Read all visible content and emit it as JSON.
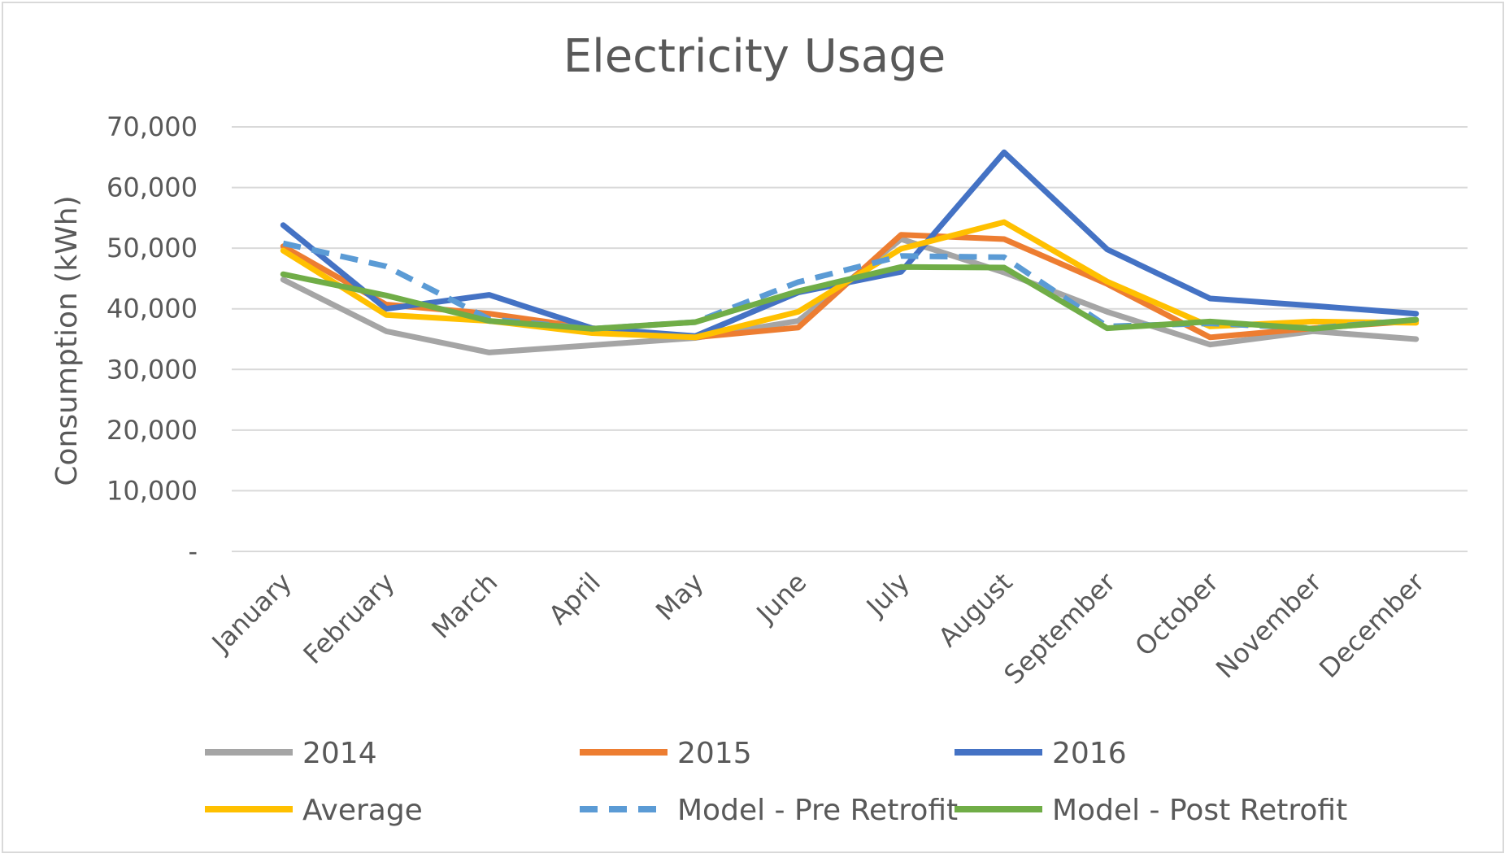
{
  "chart_data": {
    "type": "line",
    "title": "Electricity Usage",
    "xlabel": "",
    "ylabel": "Consumption (kWh)",
    "ylim": [
      0,
      70000
    ],
    "yticks": [
      0,
      10000,
      20000,
      30000,
      40000,
      50000,
      60000,
      70000
    ],
    "ytick_labels": [
      "-",
      "10,000",
      "20,000",
      "30,000",
      "40,000",
      "50,000",
      "60,000",
      "70,000"
    ],
    "categories": [
      "January",
      "February",
      "March",
      "April",
      "May",
      "June",
      "July",
      "August",
      "September",
      "October",
      "November",
      "December"
    ],
    "grid": true,
    "legend_position": "bottom",
    "series": [
      {
        "name": "2014",
        "color": "#a5a5a5",
        "dashed": false,
        "values": [
          44800,
          36300,
          32800,
          34000,
          35200,
          38000,
          51500,
          46000,
          39500,
          34100,
          36300,
          35000
        ]
      },
      {
        "name": "2015",
        "color": "#ed7d31",
        "dashed": false,
        "values": [
          50300,
          40700,
          39200,
          36800,
          35300,
          36900,
          52200,
          51500,
          44100,
          35300,
          36800,
          38000
        ]
      },
      {
        "name": "2016",
        "color": "#4472c4",
        "dashed": false,
        "values": [
          53800,
          40000,
          42300,
          36800,
          35500,
          42700,
          46100,
          65800,
          49800,
          41700,
          40500,
          39200
        ]
      },
      {
        "name": "Average",
        "color": "#ffc000",
        "dashed": false,
        "values": [
          49600,
          39000,
          38000,
          36000,
          35300,
          39500,
          49900,
          54300,
          44500,
          37100,
          37900,
          37700
        ]
      },
      {
        "name": "Model - Pre Retrofit",
        "color": "#5b9bd5",
        "dashed": true,
        "values": [
          50800,
          47000,
          38300,
          36700,
          37800,
          44400,
          48700,
          48500,
          37100,
          37600,
          36800,
          38200
        ]
      },
      {
        "name": "Model - Post Retrofit",
        "color": "#70ad47",
        "dashed": false,
        "values": [
          45700,
          42200,
          38000,
          36700,
          37800,
          42900,
          46900,
          46800,
          36800,
          37900,
          36700,
          38200
        ]
      }
    ]
  }
}
